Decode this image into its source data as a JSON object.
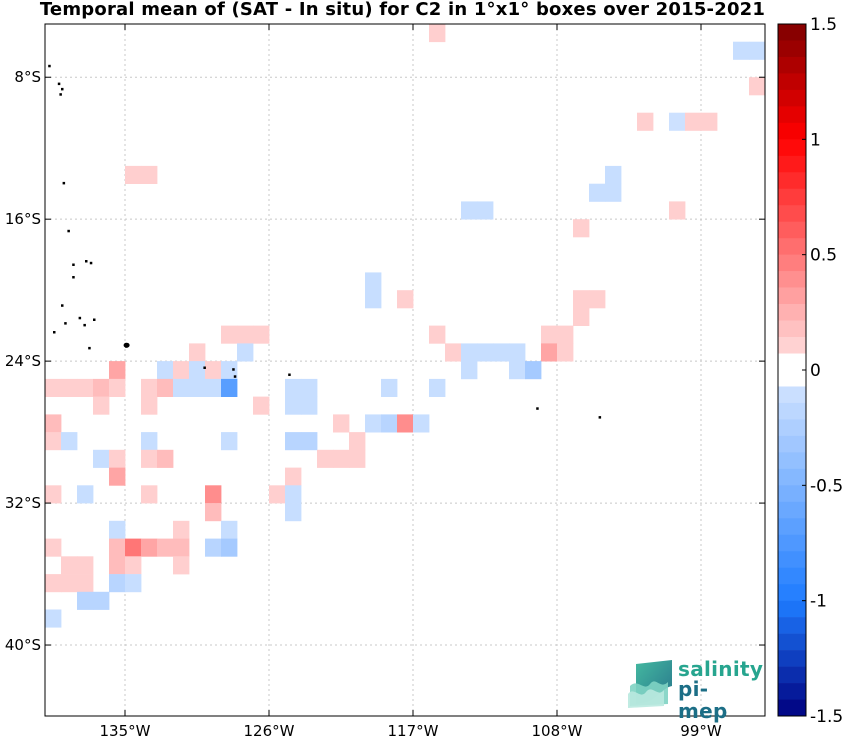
{
  "title": "Temporal mean of (SAT - In situ) for C2 in 1°x1° boxes over 2015-2021",
  "logo": {
    "line1": "salinity",
    "line2": "pi-mep"
  },
  "map": {
    "lon_range": [
      -140,
      -95
    ],
    "lat_range": [
      -44,
      -5
    ],
    "x_ticks": [
      {
        "lon": -135,
        "label": "135°W"
      },
      {
        "lon": -126,
        "label": "126°W"
      },
      {
        "lon": -117,
        "label": "117°W"
      },
      {
        "lon": -108,
        "label": "108°W"
      },
      {
        "lon": -99,
        "label": "99°W"
      }
    ],
    "y_ticks": [
      {
        "lat": -8,
        "label": "8°S"
      },
      {
        "lat": -16,
        "label": "16°S"
      },
      {
        "lat": -24,
        "label": "24°S"
      },
      {
        "lat": -32,
        "label": "32°S"
      },
      {
        "lat": -40,
        "label": "40°S"
      }
    ],
    "grid": true
  },
  "colorbar": {
    "range": [
      -1.5,
      1.5
    ],
    "levels": 42,
    "ticks": [
      {
        "value": 1.5,
        "label": "1.5"
      },
      {
        "value": 1,
        "label": "1"
      },
      {
        "value": 0.5,
        "label": "0.5"
      },
      {
        "value": 0,
        "label": "0"
      },
      {
        "value": -0.5,
        "label": "-0.5"
      },
      {
        "value": -1,
        "label": "-1"
      },
      {
        "value": -1.5,
        "label": "-1.5"
      }
    ],
    "colors": {
      "positive_max": "#7f0000",
      "positive_mid": "#ff0000",
      "negative_max": "#00007f",
      "negative_mid": "#1e7cff",
      "zero": "#ffffff"
    }
  },
  "chart_data": {
    "type": "heatmap",
    "title": "Temporal mean of (SAT - In situ) for C2 in 1°x1° boxes over 2015-2021",
    "xlabel": "",
    "ylabel": "",
    "x_unit": "longitude (°W)",
    "y_unit": "latitude (°S)",
    "xlim": [
      -140,
      -95
    ],
    "ylim": [
      -44,
      -5
    ],
    "colorbar_range": [
      -1.5,
      1.5
    ],
    "cell_size_deg": 1,
    "cells": [
      {
        "lon": -115.5,
        "lat": -5.5,
        "value": 0.12
      },
      {
        "lon": -96.5,
        "lat": -6.5,
        "value": -0.12
      },
      {
        "lon": -95.5,
        "lat": -6.5,
        "value": -0.12
      },
      {
        "lon": -95.5,
        "lat": -8.5,
        "value": 0.12
      },
      {
        "lon": -102.5,
        "lat": -10.5,
        "value": 0.12
      },
      {
        "lon": -100.5,
        "lat": -10.5,
        "value": -0.09
      },
      {
        "lon": -99.5,
        "lat": -10.5,
        "value": 0.12
      },
      {
        "lon": -98.5,
        "lat": -10.5,
        "value": 0.12
      },
      {
        "lon": -134.5,
        "lat": -13.5,
        "value": 0.12
      },
      {
        "lon": -133.5,
        "lat": -13.5,
        "value": 0.12
      },
      {
        "lon": -104.5,
        "lat": -13.5,
        "value": -0.12
      },
      {
        "lon": -105.5,
        "lat": -14.5,
        "value": -0.12
      },
      {
        "lon": -104.5,
        "lat": -14.5,
        "value": -0.12
      },
      {
        "lon": -100.5,
        "lat": -15.5,
        "value": 0.12
      },
      {
        "lon": -113.5,
        "lat": -15.5,
        "value": -0.12
      },
      {
        "lon": -112.5,
        "lat": -15.5,
        "value": -0.12
      },
      {
        "lon": -106.5,
        "lat": -16.5,
        "value": 0.12
      },
      {
        "lon": -119.5,
        "lat": -19.5,
        "value": -0.12
      },
      {
        "lon": -119.5,
        "lat": -20.5,
        "value": -0.12
      },
      {
        "lon": -117.5,
        "lat": -20.5,
        "value": 0.12
      },
      {
        "lon": -106.5,
        "lat": -20.5,
        "value": 0.12
      },
      {
        "lon": -105.5,
        "lat": -20.5,
        "value": 0.12
      },
      {
        "lon": -106.5,
        "lat": -21.5,
        "value": 0.12
      },
      {
        "lon": -128.5,
        "lat": -22.5,
        "value": 0.12
      },
      {
        "lon": -127.5,
        "lat": -22.5,
        "value": 0.12
      },
      {
        "lon": -126.5,
        "lat": -22.5,
        "value": 0.12
      },
      {
        "lon": -115.5,
        "lat": -22.5,
        "value": 0.12
      },
      {
        "lon": -108.5,
        "lat": -22.5,
        "value": 0.12
      },
      {
        "lon": -107.5,
        "lat": -22.5,
        "value": 0.12
      },
      {
        "lon": -130.5,
        "lat": -23.5,
        "value": 0.12
      },
      {
        "lon": -127.5,
        "lat": -23.5,
        "value": -0.12
      },
      {
        "lon": -114.5,
        "lat": -23.5,
        "value": 0.12
      },
      {
        "lon": -113.5,
        "lat": -23.5,
        "value": -0.12
      },
      {
        "lon": -112.5,
        "lat": -23.5,
        "value": -0.12
      },
      {
        "lon": -111.5,
        "lat": -23.5,
        "value": -0.12
      },
      {
        "lon": -110.5,
        "lat": -23.5,
        "value": -0.12
      },
      {
        "lon": -108.5,
        "lat": -23.5,
        "value": 0.3
      },
      {
        "lon": -107.5,
        "lat": -23.5,
        "value": 0.12
      },
      {
        "lon": -135.5,
        "lat": -24.5,
        "value": 0.3
      },
      {
        "lon": -132.5,
        "lat": -24.5,
        "value": -0.12
      },
      {
        "lon": -131.5,
        "lat": -24.5,
        "value": 0.12
      },
      {
        "lon": -130.5,
        "lat": -24.5,
        "value": -0.12
      },
      {
        "lon": -129.5,
        "lat": -24.5,
        "value": 0.12
      },
      {
        "lon": -128.5,
        "lat": -24.5,
        "value": -0.12
      },
      {
        "lon": -113.5,
        "lat": -24.5,
        "value": -0.12
      },
      {
        "lon": -110.5,
        "lat": -24.5,
        "value": -0.12
      },
      {
        "lon": -109.5,
        "lat": -24.5,
        "value": -0.3
      },
      {
        "lon": -139.5,
        "lat": -25.5,
        "value": 0.12
      },
      {
        "lon": -138.5,
        "lat": -25.5,
        "value": 0.12
      },
      {
        "lon": -137.5,
        "lat": -25.5,
        "value": 0.12
      },
      {
        "lon": -136.5,
        "lat": -25.5,
        "value": 0.2
      },
      {
        "lon": -135.5,
        "lat": -25.5,
        "value": 0.12
      },
      {
        "lon": -133.5,
        "lat": -25.5,
        "value": 0.12
      },
      {
        "lon": -132.5,
        "lat": -25.5,
        "value": 0.2
      },
      {
        "lon": -131.5,
        "lat": -25.5,
        "value": -0.12
      },
      {
        "lon": -130.5,
        "lat": -25.5,
        "value": -0.12
      },
      {
        "lon": -129.5,
        "lat": -25.5,
        "value": -0.12
      },
      {
        "lon": -128.5,
        "lat": -25.5,
        "value": -0.7
      },
      {
        "lon": -124.5,
        "lat": -25.5,
        "value": -0.12
      },
      {
        "lon": -123.5,
        "lat": -25.5,
        "value": -0.12
      },
      {
        "lon": -118.5,
        "lat": -25.5,
        "value": -0.12
      },
      {
        "lon": -115.5,
        "lat": -25.5,
        "value": -0.12
      },
      {
        "lon": -136.5,
        "lat": -26.5,
        "value": 0.12
      },
      {
        "lon": -133.5,
        "lat": -26.5,
        "value": 0.12
      },
      {
        "lon": -126.5,
        "lat": -26.5,
        "value": 0.12
      },
      {
        "lon": -124.5,
        "lat": -26.5,
        "value": -0.12
      },
      {
        "lon": -123.5,
        "lat": -26.5,
        "value": -0.12
      },
      {
        "lon": -139.5,
        "lat": -27.5,
        "value": 0.2
      },
      {
        "lon": -121.5,
        "lat": -27.5,
        "value": 0.12
      },
      {
        "lon": -119.5,
        "lat": -27.5,
        "value": -0.12
      },
      {
        "lon": -118.5,
        "lat": -27.5,
        "value": -0.2
      },
      {
        "lon": -117.5,
        "lat": -27.5,
        "value": 0.4
      },
      {
        "lon": -116.5,
        "lat": -27.5,
        "value": -0.12
      },
      {
        "lon": -139.5,
        "lat": -28.5,
        "value": 0.12
      },
      {
        "lon": -138.5,
        "lat": -28.5,
        "value": -0.12
      },
      {
        "lon": -133.5,
        "lat": -28.5,
        "value": -0.12
      },
      {
        "lon": -128.5,
        "lat": -28.5,
        "value": -0.12
      },
      {
        "lon": -124.5,
        "lat": -28.5,
        "value": -0.2
      },
      {
        "lon": -123.5,
        "lat": -28.5,
        "value": -0.2
      },
      {
        "lon": -120.5,
        "lat": -28.5,
        "value": 0.12
      },
      {
        "lon": -136.5,
        "lat": -29.5,
        "value": -0.12
      },
      {
        "lon": -135.5,
        "lat": -29.5,
        "value": 0.12
      },
      {
        "lon": -133.5,
        "lat": -29.5,
        "value": 0.12
      },
      {
        "lon": -132.5,
        "lat": -29.5,
        "value": 0.2
      },
      {
        "lon": -122.5,
        "lat": -29.5,
        "value": 0.12
      },
      {
        "lon": -121.5,
        "lat": -29.5,
        "value": 0.12
      },
      {
        "lon": -120.5,
        "lat": -29.5,
        "value": 0.12
      },
      {
        "lon": -135.5,
        "lat": -30.5,
        "value": 0.3
      },
      {
        "lon": -124.5,
        "lat": -30.5,
        "value": 0.12
      },
      {
        "lon": -139.5,
        "lat": -31.5,
        "value": 0.12
      },
      {
        "lon": -137.5,
        "lat": -31.5,
        "value": -0.12
      },
      {
        "lon": -133.5,
        "lat": -31.5,
        "value": 0.12
      },
      {
        "lon": -129.5,
        "lat": -31.5,
        "value": 0.4
      },
      {
        "lon": -125.5,
        "lat": -31.5,
        "value": 0.12
      },
      {
        "lon": -124.5,
        "lat": -31.5,
        "value": -0.12
      },
      {
        "lon": -129.5,
        "lat": -32.5,
        "value": 0.2
      },
      {
        "lon": -124.5,
        "lat": -32.5,
        "value": -0.12
      },
      {
        "lon": -135.5,
        "lat": -33.5,
        "value": -0.12
      },
      {
        "lon": -131.5,
        "lat": -33.5,
        "value": 0.12
      },
      {
        "lon": -128.5,
        "lat": -33.5,
        "value": -0.12
      },
      {
        "lon": -139.5,
        "lat": -34.5,
        "value": 0.12
      },
      {
        "lon": -135.5,
        "lat": -34.5,
        "value": 0.2
      },
      {
        "lon": -134.5,
        "lat": -34.5,
        "value": 0.5
      },
      {
        "lon": -133.5,
        "lat": -34.5,
        "value": 0.3
      },
      {
        "lon": -132.5,
        "lat": -34.5,
        "value": 0.2
      },
      {
        "lon": -131.5,
        "lat": -34.5,
        "value": 0.2
      },
      {
        "lon": -129.5,
        "lat": -34.5,
        "value": -0.2
      },
      {
        "lon": -128.5,
        "lat": -34.5,
        "value": -0.3
      },
      {
        "lon": -138.5,
        "lat": -35.5,
        "value": 0.12
      },
      {
        "lon": -137.5,
        "lat": -35.5,
        "value": 0.12
      },
      {
        "lon": -135.5,
        "lat": -35.5,
        "value": 0.2
      },
      {
        "lon": -134.5,
        "lat": -35.5,
        "value": 0.12
      },
      {
        "lon": -131.5,
        "lat": -35.5,
        "value": 0.12
      },
      {
        "lon": -139.5,
        "lat": -36.5,
        "value": 0.12
      },
      {
        "lon": -138.5,
        "lat": -36.5,
        "value": 0.12
      },
      {
        "lon": -137.5,
        "lat": -36.5,
        "value": 0.12
      },
      {
        "lon": -135.5,
        "lat": -36.5,
        "value": -0.2
      },
      {
        "lon": -134.5,
        "lat": -36.5,
        "value": -0.12
      },
      {
        "lon": -137.5,
        "lat": -37.5,
        "value": -0.2
      },
      {
        "lon": -136.5,
        "lat": -37.5,
        "value": -0.2
      },
      {
        "lon": -139.5,
        "lat": -38.5,
        "value": -0.12
      }
    ]
  }
}
